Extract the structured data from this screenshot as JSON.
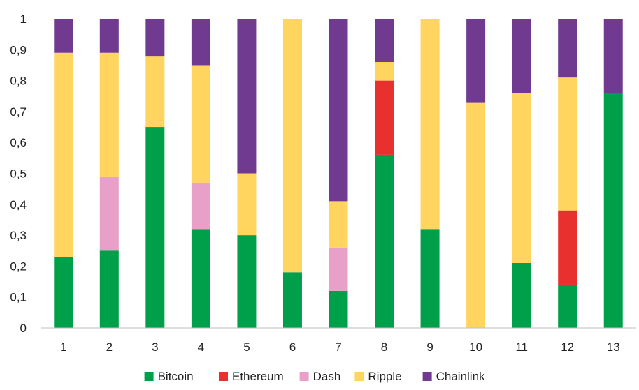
{
  "chart_data": {
    "type": "bar",
    "stacked": true,
    "categories": [
      "1",
      "2",
      "3",
      "4",
      "5",
      "6",
      "7",
      "8",
      "9",
      "10",
      "11",
      "12",
      "13"
    ],
    "ylim": [
      0,
      1
    ],
    "yticks": [
      "0",
      "0,1",
      "0,2",
      "0,3",
      "0,4",
      "0,5",
      "0,6",
      "0,7",
      "0,8",
      "0,9",
      "1"
    ],
    "grid": false,
    "legend_position": "bottom",
    "series": [
      {
        "name": "Bitcoin",
        "color": "#00a04a",
        "values": [
          0.23,
          0.25,
          0.65,
          0.32,
          0.3,
          0.18,
          0.12,
          0.56,
          0.32,
          0.0,
          0.21,
          0.14,
          0.76
        ]
      },
      {
        "name": "Ethereum",
        "color": "#e8312f",
        "values": [
          0.0,
          0.0,
          0.0,
          0.0,
          0.0,
          0.0,
          0.0,
          0.24,
          0.0,
          0.0,
          0.0,
          0.24,
          0.0
        ]
      },
      {
        "name": "Dash",
        "color": "#e8a0c8",
        "values": [
          0.0,
          0.24,
          0.0,
          0.15,
          0.0,
          0.0,
          0.14,
          0.0,
          0.0,
          0.0,
          0.0,
          0.0,
          0.0
        ]
      },
      {
        "name": "Ripple",
        "color": "#ffd45f",
        "values": [
          0.66,
          0.4,
          0.23,
          0.38,
          0.2,
          0.82,
          0.15,
          0.06,
          0.68,
          0.73,
          0.55,
          0.43,
          0.0
        ]
      },
      {
        "name": "Chainlink",
        "color": "#6f3a8f",
        "values": [
          0.11,
          0.11,
          0.12,
          0.15,
          0.5,
          0.0,
          0.59,
          0.14,
          0.0,
          0.27,
          0.24,
          0.19,
          0.24
        ]
      }
    ]
  }
}
